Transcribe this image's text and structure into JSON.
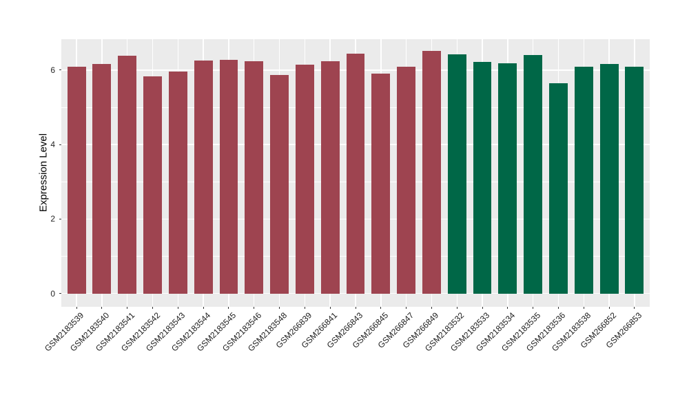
{
  "chart_data": {
    "type": "bar",
    "ylabel": "Expression Level",
    "ylim": [
      0,
      6.84
    ],
    "yticks": [
      0,
      2,
      4,
      6
    ],
    "yticks_minor": [
      1,
      3,
      5
    ],
    "grid": true,
    "legend": false,
    "categories": [
      "GSM2183539",
      "GSM2183540",
      "GSM2183541",
      "GSM2183542",
      "GSM2183543",
      "GSM2183544",
      "GSM2183545",
      "GSM2183546",
      "GSM2183548",
      "GSM266839",
      "GSM266841",
      "GSM266843",
      "GSM266845",
      "GSM266847",
      "GSM266849",
      "GSM2183532",
      "GSM2183533",
      "GSM2183534",
      "GSM2183535",
      "GSM2183536",
      "GSM2183538",
      "GSM266852",
      "GSM266853"
    ],
    "values": [
      6.1,
      6.16,
      6.39,
      5.84,
      5.96,
      6.26,
      6.27,
      6.24,
      5.87,
      6.15,
      6.24,
      6.44,
      5.9,
      6.09,
      6.52,
      6.43,
      6.22,
      6.19,
      6.4,
      5.64,
      6.09,
      6.17,
      6.09
    ],
    "bar_groups": [
      "A",
      "A",
      "A",
      "A",
      "A",
      "A",
      "A",
      "A",
      "A",
      "A",
      "A",
      "A",
      "A",
      "A",
      "A",
      "B",
      "B",
      "B",
      "B",
      "B",
      "B",
      "B",
      "B"
    ],
    "group_colors": {
      "A": "#9e4450",
      "B": "#006747"
    },
    "panel_bg": "#ebebeb",
    "grid_color": "#ffffff",
    "tick_color": "#333333",
    "axis_text_color": "#262626"
  }
}
